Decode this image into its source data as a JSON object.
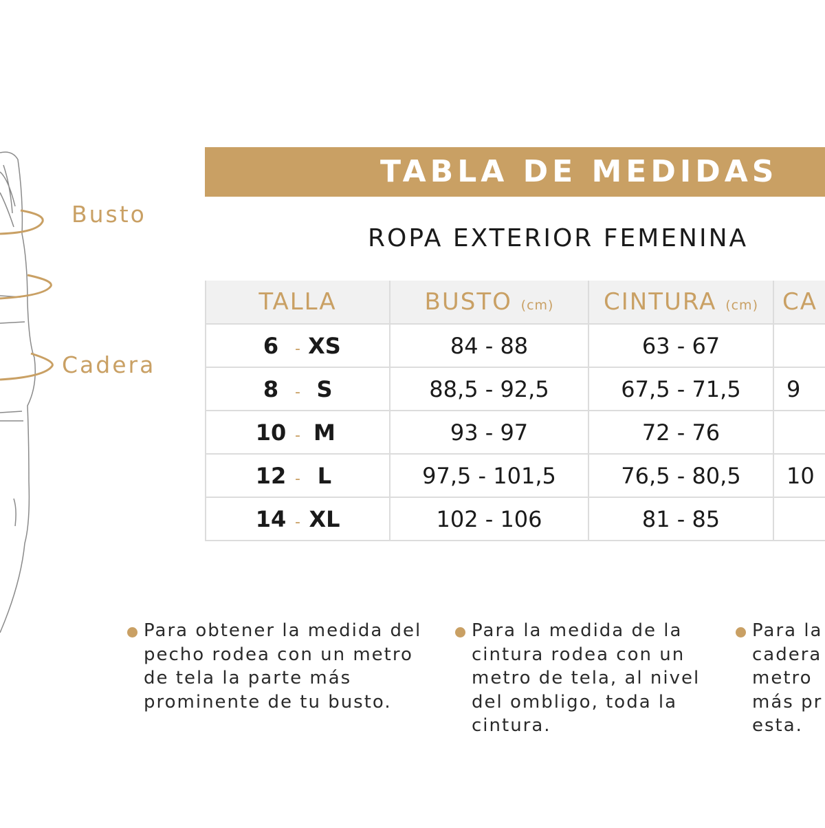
{
  "colors": {
    "accent": "#c9a064",
    "header_bg": "#f1f1f1",
    "text": "#1a1a1a"
  },
  "figure": {
    "labels": {
      "busto": "Busto",
      "cadera": "Cadera"
    }
  },
  "title": "TABLA DE MEDIDAS",
  "subtitle": "ROPA EXTERIOR FEMENINA",
  "table": {
    "headers": [
      {
        "label": "TALLA",
        "unit": ""
      },
      {
        "label": "BUSTO",
        "unit": "(cm)"
      },
      {
        "label": "CINTURA",
        "unit": "(cm)"
      },
      {
        "label": "CA",
        "unit": ""
      }
    ],
    "rows": [
      {
        "num": "6",
        "size": "XS",
        "busto": "84 - 88",
        "cintura": "63 -  67",
        "cadera": ""
      },
      {
        "num": "8",
        "size": "S",
        "busto": "88,5 - 92,5",
        "cintura": "67,5 -  71,5",
        "cadera": "9"
      },
      {
        "num": "10",
        "size": "M",
        "busto": "93 - 97",
        "cintura": "72 - 76",
        "cadera": ""
      },
      {
        "num": "12",
        "size": "L",
        "busto": "97,5 - 101,5",
        "cintura": "76,5 - 80,5",
        "cadera": "10"
      },
      {
        "num": "14",
        "size": "XL",
        "busto": "102 - 106",
        "cintura": "81 - 85",
        "cadera": ""
      }
    ],
    "separator": "-"
  },
  "notes": [
    {
      "lines": [
        "Para obtener la medida del",
        "pecho rodea con un metro",
        "de tela la parte más",
        "prominente de tu busto."
      ]
    },
    {
      "lines": [
        "Para la medida de la",
        "cintura rodea con un",
        "metro de tela, al nivel",
        "del ombligo, toda la",
        "cintura."
      ]
    },
    {
      "lines": [
        "Para la",
        "cadera",
        "metro",
        "más pr",
        "esta."
      ]
    }
  ]
}
